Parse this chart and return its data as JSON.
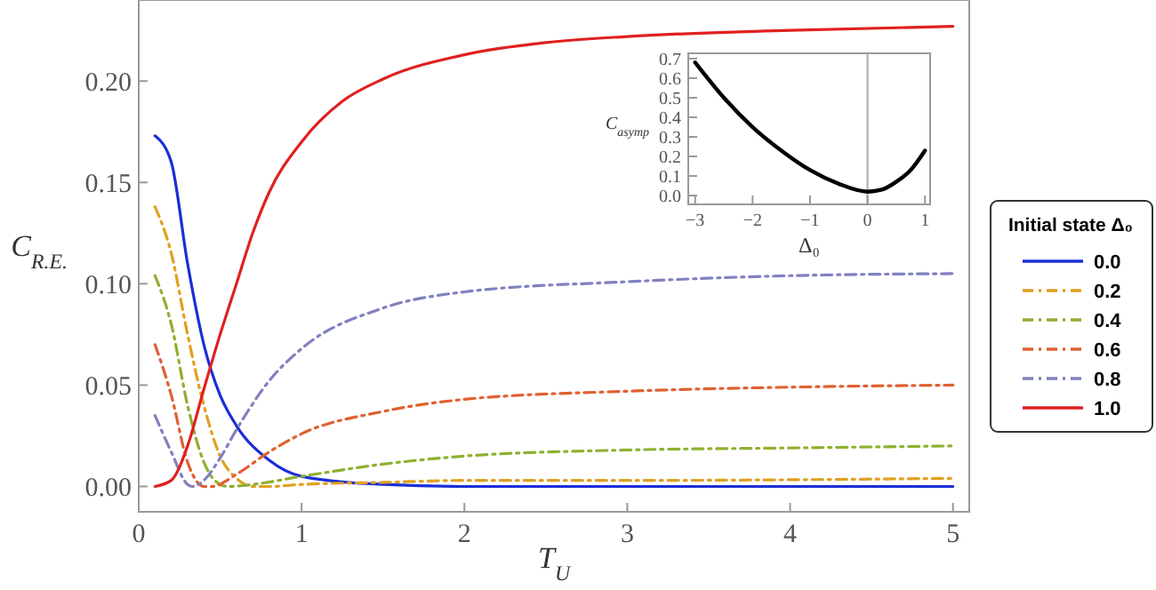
{
  "chart_data": [
    {
      "type": "line",
      "xlabel": "T$_{U}$",
      "ylabel": "C$_{R.E.}$",
      "legend_title": "Initial state Δ₀",
      "legend": "right",
      "xlim": [
        0,
        5.1
      ],
      "ylim": [
        -0.0125,
        0.24
      ],
      "xticks": [
        0,
        1,
        2,
        3,
        4,
        5
      ],
      "yticks": [
        {
          "value": 0,
          "label": "0.00"
        },
        {
          "value": 0.05,
          "label": "0.05"
        },
        {
          "value": 0.1,
          "label": "0.10"
        },
        {
          "value": 0.15,
          "label": "0.15"
        },
        {
          "value": 0.2,
          "label": "0.20"
        }
      ],
      "grid": false,
      "series": [
        {
          "name": "0.0",
          "color": "#1a2fd6",
          "line_style": "solid",
          "x": [
            0.1,
            0.2,
            0.3,
            0.4,
            0.5,
            0.6,
            0.8,
            1.0,
            1.5,
            2,
            3,
            5
          ],
          "values": [
            0.173,
            0.16,
            0.11,
            0.07,
            0.045,
            0.03,
            0.013,
            0.005,
            0.001,
            0.0,
            0.0,
            0.0
          ]
        },
        {
          "name": "0.2",
          "color": "#e0a020",
          "line_style": "dashed",
          "x": [
            0.1,
            0.2,
            0.3,
            0.4,
            0.5,
            0.6,
            0.7,
            0.8,
            1.0,
            1.5,
            2,
            3,
            5
          ],
          "values": [
            0.138,
            0.115,
            0.075,
            0.04,
            0.015,
            0.004,
            0.0,
            0.0,
            0.001,
            0.002,
            0.003,
            0.003,
            0.004
          ]
        },
        {
          "name": "0.4",
          "color": "#8fb030",
          "line_style": "dashed",
          "x": [
            0.1,
            0.2,
            0.3,
            0.4,
            0.5,
            0.55,
            0.7,
            1.0,
            1.5,
            2,
            3,
            4,
            5
          ],
          "values": [
            0.104,
            0.08,
            0.04,
            0.012,
            0.001,
            0.0,
            0.001,
            0.005,
            0.011,
            0.015,
            0.018,
            0.019,
            0.02
          ]
        },
        {
          "name": "0.6",
          "color": "#e06030",
          "line_style": "dashed",
          "x": [
            0.1,
            0.2,
            0.3,
            0.4,
            0.45,
            0.6,
            0.8,
            1.0,
            1.5,
            2,
            3,
            4,
            5
          ],
          "values": [
            0.07,
            0.045,
            0.012,
            0.0,
            0.0,
            0.006,
            0.017,
            0.026,
            0.037,
            0.043,
            0.047,
            0.049,
            0.05
          ]
        },
        {
          "name": "0.8",
          "color": "#8080c0",
          "line_style": "dashed",
          "x": [
            0.1,
            0.2,
            0.3,
            0.33,
            0.4,
            0.5,
            0.6,
            0.8,
            1.0,
            1.5,
            2,
            3,
            4,
            5
          ],
          "values": [
            0.035,
            0.017,
            0.001,
            0.0,
            0.003,
            0.014,
            0.028,
            0.052,
            0.068,
            0.088,
            0.096,
            0.101,
            0.104,
            0.105
          ]
        },
        {
          "name": "1.0",
          "color": "#e02020",
          "line_style": "solid",
          "x": [
            0.1,
            0.2,
            0.3,
            0.4,
            0.5,
            0.6,
            0.7,
            0.8,
            1.0,
            1.25,
            1.5,
            2,
            2.5,
            3,
            4,
            5
          ],
          "values": [
            0.0,
            0.003,
            0.02,
            0.048,
            0.075,
            0.1,
            0.125,
            0.145,
            0.17,
            0.19,
            0.201,
            0.213,
            0.219,
            0.222,
            0.225,
            0.227
          ]
        }
      ]
    },
    {
      "type": "line",
      "xlabel": "Δ₀",
      "ylabel": "C$_{asymp}$",
      "xlim": [
        -3.12,
        1.09
      ],
      "ylim": [
        -0.045,
        0.727
      ],
      "xticks": [
        {
          "value": -3,
          "label": "−3"
        },
        {
          "value": -2,
          "label": "−2"
        },
        {
          "value": -1,
          "label": "−1"
        },
        0,
        1
      ],
      "yticks": [
        {
          "value": 0,
          "label": "0.0"
        },
        {
          "value": 0.1,
          "label": "0.1"
        },
        {
          "value": 0.2,
          "label": "0.2"
        },
        {
          "value": 0.3,
          "label": "0.3"
        },
        {
          "value": 0.4,
          "label": "0.4"
        },
        {
          "value": 0.5,
          "label": "0.5"
        },
        {
          "value": 0.6,
          "label": "0.6"
        },
        {
          "value": 0.7,
          "label": "0.7"
        }
      ],
      "ref_lines": [
        {
          "axis": "x",
          "value": 0,
          "color": "#aaaaaa"
        }
      ],
      "series": [
        {
          "color": "#000000",
          "line_style": "solid",
          "x": [
            -3,
            -2.5,
            -2,
            -1.5,
            -1,
            -0.5,
            0,
            0.25,
            0.5,
            0.75,
            1
          ],
          "values": [
            0.68,
            0.5,
            0.35,
            0.23,
            0.13,
            0.06,
            0.02,
            0.03,
            0.07,
            0.13,
            0.23
          ]
        }
      ]
    }
  ]
}
